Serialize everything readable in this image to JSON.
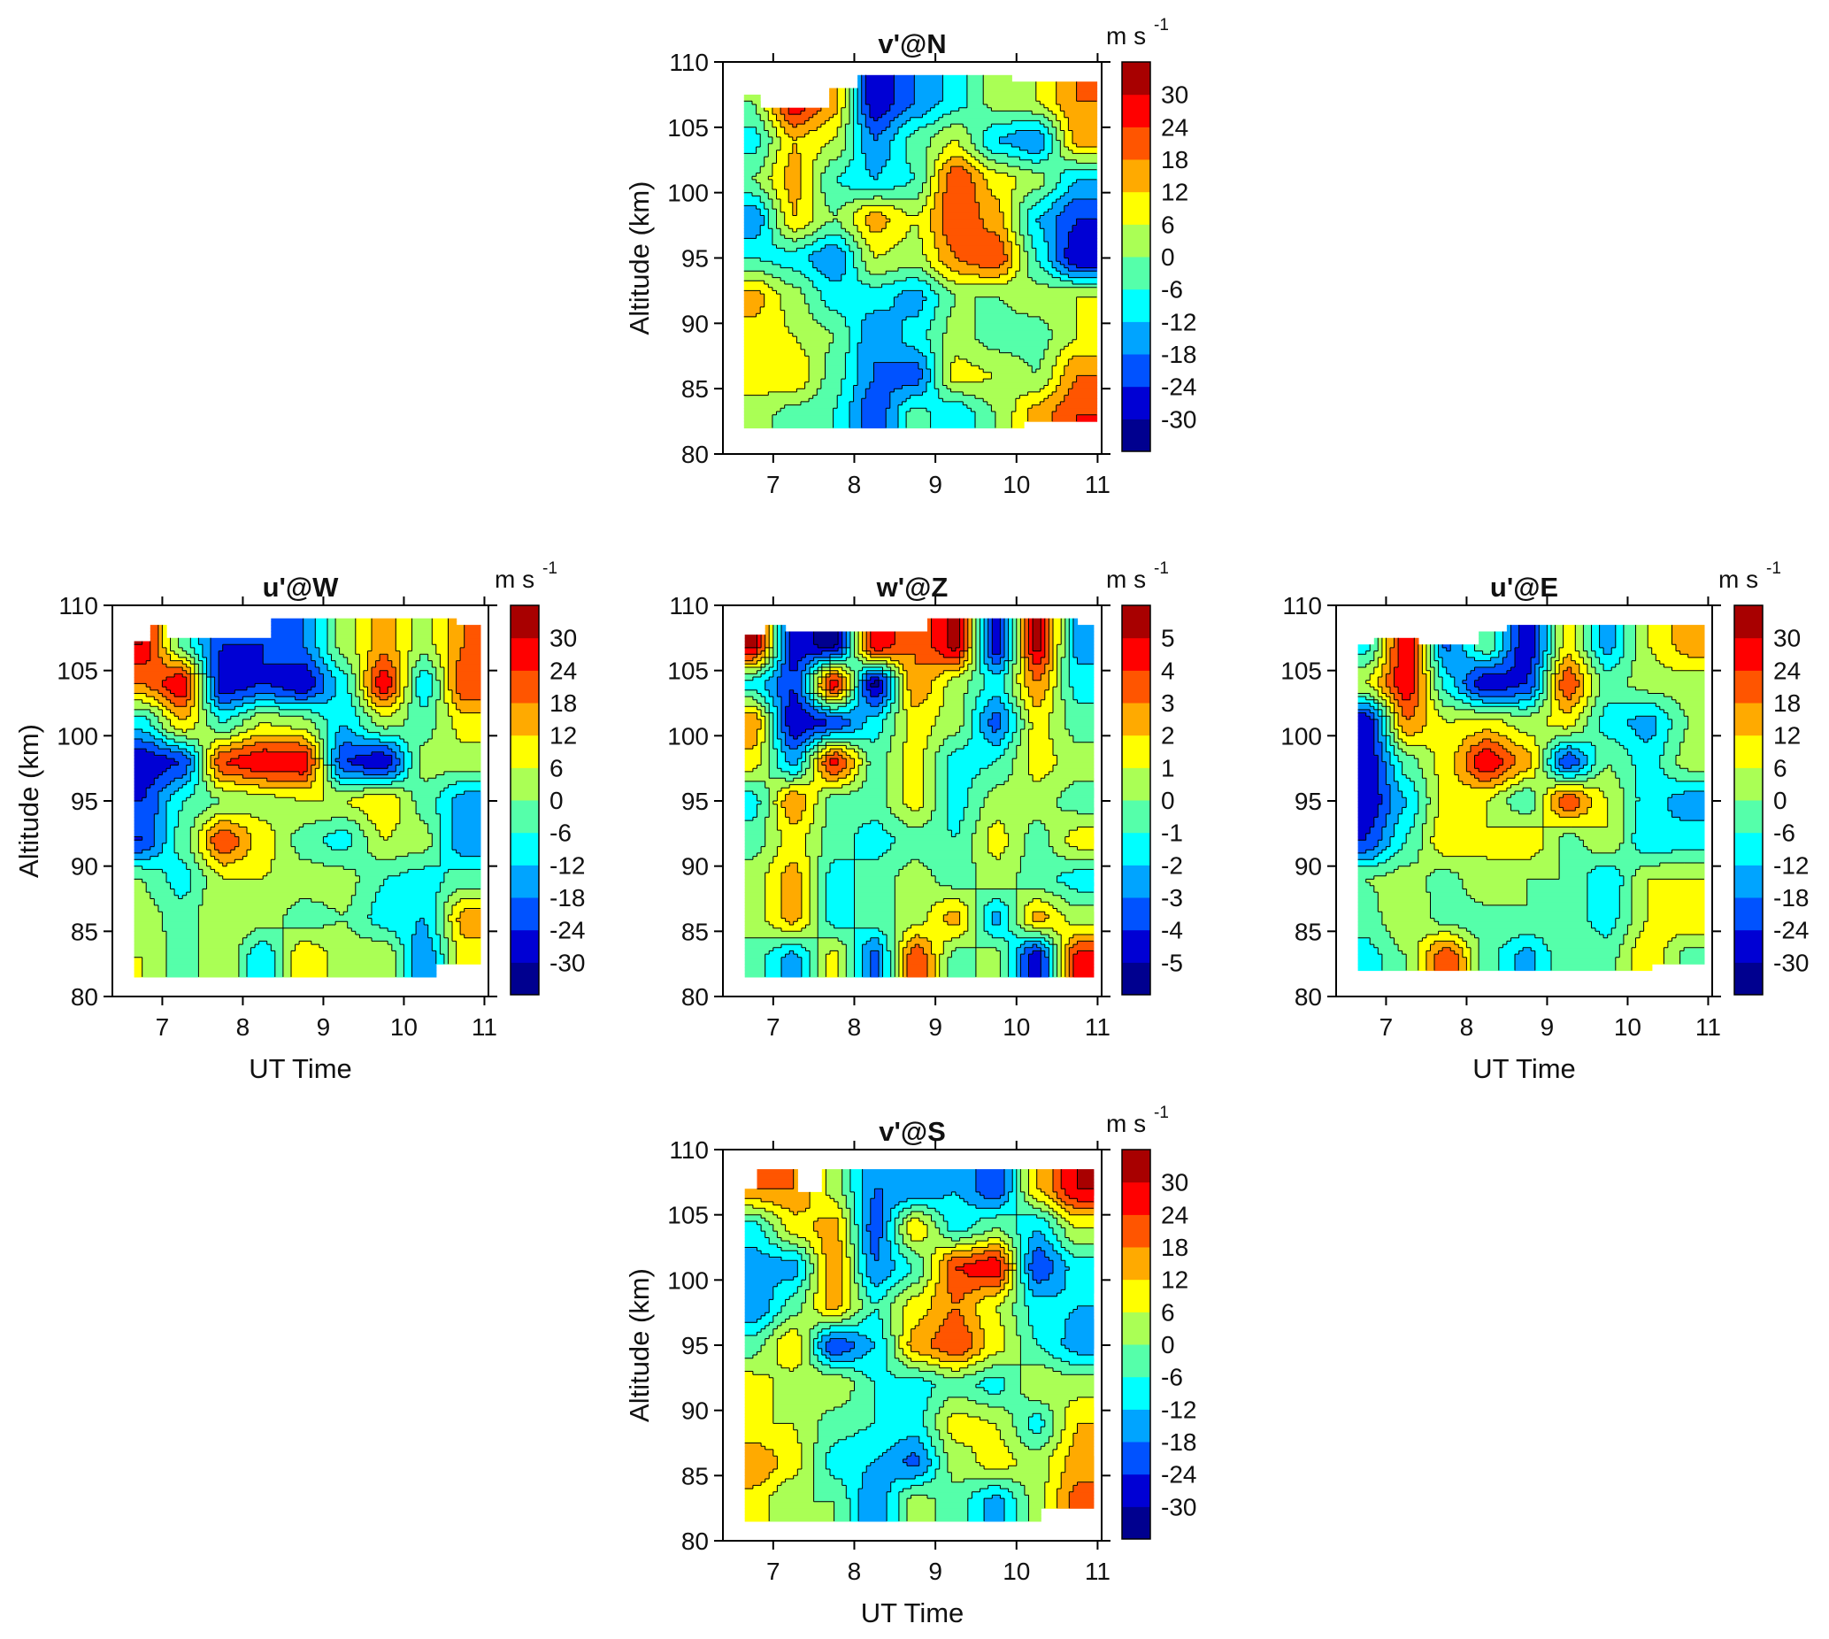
{
  "colormap": [
    "#00008f",
    "#0000d4",
    "#0052ff",
    "#00a4ff",
    "#00ffff",
    "#55ffaa",
    "#aaff55",
    "#ffff00",
    "#ffaa00",
    "#ff5500",
    "#ff0000",
    "#a80000"
  ],
  "chart_data": [
    {
      "type": "heatmap",
      "subtype": "filled-contour",
      "title": "v'@N",
      "xlabel": "",
      "ylabel": "Altitude (km)",
      "xlim": [
        6.38,
        11.05
      ],
      "ylim": [
        80,
        110
      ],
      "xticks": [
        "7",
        "8",
        "9",
        "10",
        "11"
      ],
      "yticks": [
        "80",
        "85",
        "90",
        "95",
        "100",
        "105",
        "110"
      ],
      "colorbar": {
        "unit": "m s",
        "unit_exp": "-1",
        "min": -36,
        "max": 36,
        "step": 6,
        "ticklabels": [
          "30",
          "24",
          "18",
          "12",
          "6",
          "0",
          "-6",
          "-12",
          "-18",
          "-24",
          "-30"
        ]
      },
      "x": [
        6.75,
        7.25,
        7.75,
        8.25,
        8.75,
        9.25,
        9.75,
        10.25,
        10.75
      ],
      "y": [
        83,
        86,
        89,
        92,
        95,
        98,
        101,
        104,
        107
      ],
      "z": [
        [
          3,
          -3,
          -6,
          -24,
          -3,
          -12,
          0,
          15,
          24
        ],
        [
          9,
          12,
          -3,
          -18,
          -22,
          9,
          6,
          0,
          18
        ],
        [
          9,
          6,
          0,
          -18,
          -9,
          3,
          -3,
          -3,
          6
        ],
        [
          15,
          3,
          -9,
          -9,
          -15,
          0,
          0,
          3,
          6
        ],
        [
          -6,
          -9,
          -18,
          6,
          3,
          18,
          24,
          -6,
          -30
        ],
        [
          -18,
          12,
          0,
          15,
          6,
          24,
          15,
          -12,
          -24
        ],
        [
          0,
          15,
          -6,
          -12,
          -6,
          24,
          9,
          3,
          -12
        ],
        [
          -9,
          12,
          6,
          -18,
          -3,
          6,
          -12,
          -18,
          15
        ],
        [
          0,
          30,
          15,
          -30,
          -18,
          -9,
          3,
          6,
          18
        ]
      ],
      "data_extent": {
        "t_range": [
          6.64,
          10.95
        ],
        "top_edge": [
          [
            6.64,
            107.5
          ],
          [
            6.82,
            106.6
          ],
          [
            7.7,
            108
          ],
          [
            8.05,
            109
          ],
          [
            9.95,
            108.6
          ]
        ],
        "bottom_edge": [
          [
            6.64,
            82.1
          ],
          [
            10.1,
            82.6
          ]
        ]
      }
    },
    {
      "type": "heatmap",
      "subtype": "filled-contour",
      "title": "u'@W",
      "xlabel": "UT Time",
      "ylabel": "Altitude (km)",
      "xlim": [
        6.38,
        11.05
      ],
      "ylim": [
        80,
        110
      ],
      "xticks": [
        "7",
        "8",
        "9",
        "10",
        "11"
      ],
      "yticks": [
        "80",
        "85",
        "90",
        "95",
        "100",
        "105",
        "110"
      ],
      "colorbar": {
        "unit": "m s",
        "unit_exp": "-1",
        "min": -36,
        "max": 36,
        "step": 6,
        "ticklabels": [
          "30",
          "24",
          "18",
          "12",
          "6",
          "0",
          "-6",
          "-12",
          "-18",
          "-24",
          "-30"
        ]
      },
      "x": [
        6.75,
        7.25,
        7.75,
        8.25,
        8.75,
        9.25,
        9.75,
        10.25,
        10.75
      ],
      "y": [
        83,
        86,
        89,
        92,
        95,
        98,
        101,
        104,
        107
      ],
      "z": [
        [
          6,
          -3,
          6,
          -12,
          12,
          3,
          6,
          -18,
          9
        ],
        [
          3,
          -3,
          6,
          3,
          -3,
          0,
          -9,
          -12,
          15
        ],
        [
          0,
          -9,
          6,
          6,
          3,
          3,
          -6,
          -9,
          -3
        ],
        [
          -24,
          -3,
          24,
          9,
          -3,
          -9,
          6,
          3,
          -18
        ],
        [
          -24,
          -6,
          0,
          3,
          6,
          6,
          12,
          -3,
          -15
        ],
        [
          -30,
          -24,
          24,
          30,
          30,
          -24,
          -30,
          3,
          3
        ],
        [
          -9,
          12,
          -6,
          6,
          3,
          -12,
          3,
          -3,
          9
        ],
        [
          18,
          30,
          -30,
          -24,
          -30,
          -9,
          30,
          -12,
          24
        ],
        [
          30,
          -3,
          -24,
          -24,
          -18,
          3,
          15,
          3,
          18
        ]
      ],
      "data_extent": {
        "t_range": [
          6.65,
          10.95
        ],
        "top_edge": [
          [
            6.65,
            107.2
          ],
          [
            6.85,
            108.5
          ],
          [
            7.05,
            107.4
          ],
          [
            8.35,
            108.9
          ],
          [
            10.65,
            108.5
          ]
        ],
        "bottom_edge": [
          [
            6.65,
            81.6
          ],
          [
            10.4,
            82.6
          ]
        ]
      }
    },
    {
      "type": "heatmap",
      "subtype": "filled-contour",
      "title": "w'@Z",
      "xlabel": "",
      "ylabel": "",
      "xlim": [
        6.38,
        11.05
      ],
      "ylim": [
        80,
        110
      ],
      "xticks": [
        "7",
        "8",
        "9",
        "10",
        "11"
      ],
      "yticks": [
        "80",
        "85",
        "90",
        "95",
        "100",
        "105",
        "110"
      ],
      "colorbar": {
        "unit": "m s",
        "unit_exp": "-1",
        "min": -6,
        "max": 6,
        "step": 1,
        "ticklabels": [
          "5",
          "4",
          "3",
          "2",
          "1",
          "0",
          "-1",
          "-2",
          "-3",
          "-4",
          "-5"
        ]
      },
      "x": [
        6.75,
        7.25,
        7.75,
        8.25,
        8.75,
        9.25,
        9.75,
        10.25,
        10.75
      ],
      "y": [
        83,
        86,
        89,
        92,
        95,
        98,
        101,
        104,
        107
      ],
      "z": [
        [
          -0.5,
          -2.5,
          1.5,
          -3.5,
          4,
          -0.5,
          0.5,
          -5,
          4.5
        ],
        [
          0.5,
          2.5,
          -1.5,
          -0.5,
          0.5,
          2.5,
          -2.5,
          2.5,
          0.5
        ],
        [
          0.5,
          2.5,
          -1.5,
          -0.5,
          0.5,
          -0.5,
          0.5,
          -0.5,
          -1.5
        ],
        [
          -0.5,
          1.5,
          -0.5,
          -1.5,
          -0.5,
          -1,
          1.5,
          -0.5,
          1.5
        ],
        [
          -1.5,
          3,
          -0.5,
          -0.5,
          1.5,
          -1.5,
          0.5,
          0.5,
          -0.5
        ],
        [
          1.5,
          -2.5,
          4.5,
          -0.5,
          1.5,
          -1.5,
          -1,
          1.5,
          0.5
        ],
        [
          3,
          -5,
          -4,
          -1.5,
          1.5,
          0.5,
          -3.5,
          1.5,
          -0.5
        ],
        [
          -1.5,
          -4,
          5,
          -5.5,
          3,
          0.5,
          -1.5,
          3,
          -1.5
        ],
        [
          5.5,
          -4.5,
          -5.5,
          5,
          3,
          5.5,
          -5,
          5.5,
          -2.5
        ]
      ],
      "data_extent": {
        "t_range": [
          6.65,
          10.95
        ],
        "top_edge": [
          [
            6.65,
            107.8
          ],
          [
            6.9,
            108.4
          ],
          [
            7.15,
            108
          ],
          [
            8.9,
            109
          ],
          [
            10.75,
            108.5
          ]
        ],
        "bottom_edge": [
          [
            6.65,
            81.6
          ]
        ]
      }
    },
    {
      "type": "heatmap",
      "subtype": "filled-contour",
      "title": "u'@E",
      "xlabel": "UT Time",
      "ylabel": "",
      "xlim": [
        6.38,
        11.05
      ],
      "ylim": [
        80,
        110
      ],
      "xticks": [
        "7",
        "8",
        "9",
        "10",
        "11"
      ],
      "yticks": [
        "80",
        "85",
        "90",
        "95",
        "100",
        "105",
        "110"
      ],
      "colorbar": {
        "unit": "m s",
        "unit_exp": "-1",
        "min": -36,
        "max": 36,
        "step": 6,
        "ticklabels": [
          "30",
          "24",
          "18",
          "12",
          "6",
          "0",
          "-6",
          "-12",
          "-18",
          "-24",
          "-30"
        ]
      },
      "x": [
        6.75,
        7.25,
        7.75,
        8.25,
        8.75,
        9.25,
        9.75,
        10.25,
        10.75
      ],
      "y": [
        83,
        86,
        89,
        92,
        95,
        98,
        101,
        104,
        107
      ],
      "z": [
        [
          -9,
          0,
          24,
          -3,
          -15,
          0,
          -3,
          12,
          -3
        ],
        [
          -3,
          6,
          -3,
          -3,
          0,
          -3,
          -9,
          6,
          12
        ],
        [
          0,
          3,
          -3,
          6,
          0,
          0,
          -12,
          6,
          6
        ],
        [
          -24,
          -6,
          12,
          6,
          12,
          -3,
          6,
          -12,
          -9
        ],
        [
          -30,
          -12,
          9,
          6,
          -6,
          24,
          6,
          -9,
          -15
        ],
        [
          -30,
          -3,
          9,
          30,
          15,
          -24,
          0,
          -9,
          3
        ],
        [
          -30,
          18,
          6,
          9,
          3,
          9,
          -9,
          -15,
          0
        ],
        [
          6,
          30,
          -9,
          -30,
          -24,
          24,
          -3,
          3,
          3
        ],
        [
          -9,
          30,
          -20,
          0,
          -30,
          9,
          -15,
          6,
          15
        ]
      ],
      "data_extent": {
        "t_range": [
          6.65,
          10.95
        ],
        "top_edge": [
          [
            6.65,
            107.0
          ],
          [
            6.85,
            107.5
          ],
          [
            7.4,
            107.0
          ],
          [
            8.15,
            108.0
          ],
          [
            8.5,
            108.6
          ]
        ],
        "bottom_edge": [
          [
            6.65,
            82.0
          ],
          [
            10.3,
            82.5
          ]
        ]
      }
    },
    {
      "type": "heatmap",
      "subtype": "filled-contour",
      "title": "v'@S",
      "xlabel": "UT Time",
      "ylabel": "Altitude (km)",
      "xlim": [
        6.38,
        11.05
      ],
      "ylim": [
        80,
        110
      ],
      "xticks": [
        "7",
        "8",
        "9",
        "10",
        "11"
      ],
      "yticks": [
        "80",
        "85",
        "90",
        "95",
        "100",
        "105",
        "110"
      ],
      "colorbar": {
        "unit": "m s",
        "unit_exp": "-1",
        "min": -36,
        "max": 36,
        "step": 6,
        "ticklabels": [
          "30",
          "24",
          "18",
          "12",
          "6",
          "0",
          "-6",
          "-12",
          "-18",
          "-24",
          "-30"
        ]
      },
      "x": [
        6.75,
        7.25,
        7.75,
        8.25,
        8.75,
        9.25,
        9.75,
        10.25,
        10.75
      ],
      "y": [
        83,
        86,
        89,
        92,
        95,
        98,
        101,
        104,
        107
      ],
      "z": [
        [
          9,
          0,
          0,
          -18,
          3,
          -3,
          -15,
          3,
          21
        ],
        [
          18,
          9,
          -9,
          -12,
          -20,
          3,
          9,
          3,
          15
        ],
        [
          6,
          6,
          -3,
          -6,
          -9,
          9,
          6,
          -9,
          12
        ],
        [
          9,
          3,
          6,
          -6,
          -9,
          -3,
          -9,
          6,
          3
        ],
        [
          -3,
          12,
          -24,
          -12,
          15,
          24,
          9,
          -6,
          -15
        ],
        [
          -18,
          -3,
          15,
          -6,
          9,
          18,
          6,
          -9,
          -12
        ],
        [
          -15,
          -15,
          18,
          -18,
          -6,
          24,
          30,
          -24,
          -9
        ],
        [
          -9,
          9,
          15,
          -22,
          12,
          -9,
          0,
          -12,
          6
        ],
        [
          18,
          18,
          3,
          -18,
          -18,
          -12,
          -24,
          12,
          30
        ]
      ],
      "data_extent": {
        "t_range": [
          6.65,
          10.95
        ],
        "top_edge": [
          [
            6.65,
            107.0
          ],
          [
            6.8,
            108.4
          ],
          [
            7.3,
            106.7
          ],
          [
            7.6,
            108.4
          ]
        ],
        "bottom_edge": [
          [
            6.65,
            81.6
          ],
          [
            10.3,
            82.6
          ]
        ]
      }
    }
  ]
}
